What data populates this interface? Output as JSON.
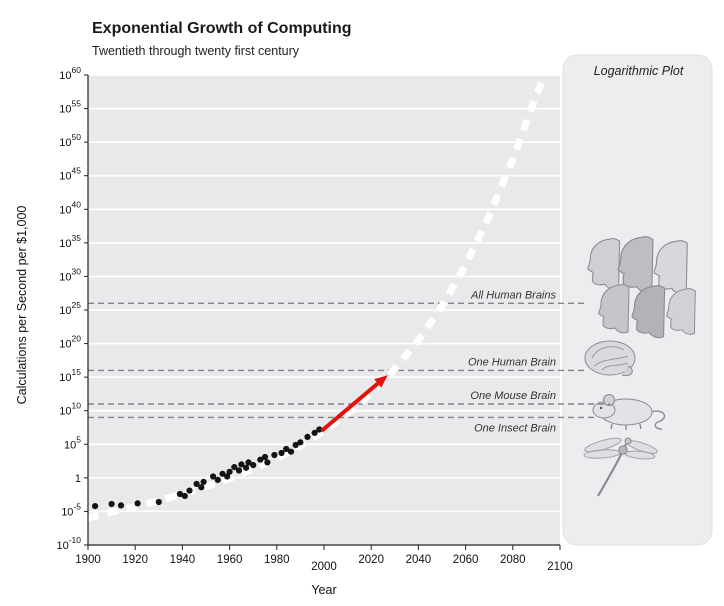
{
  "header": {
    "title": "Exponential Growth of Computing",
    "subtitle": "Twentieth through twenty first century"
  },
  "legend": {
    "label": "Logarithmic Plot"
  },
  "axes": {
    "x_label": "Year",
    "y_label": "Calculations per Second per $1,000"
  },
  "chart_data": {
    "type": "scatter",
    "title": "Exponential Growth of Computing",
    "subtitle": "Twentieth through twenty first century",
    "xlabel": "Year",
    "ylabel": "Calculations per Second per $1,000",
    "scale": "logarithmic-y",
    "x_range": [
      1900,
      2100
    ],
    "y_exponent_range": [
      -10,
      60
    ],
    "x_ticks": [
      1900,
      1920,
      1940,
      1960,
      1980,
      2000,
      2020,
      2040,
      2060,
      2080,
      2100
    ],
    "x_tick_dy": [
      0,
      0,
      0,
      0,
      0,
      7,
      0,
      0,
      0,
      0,
      7
    ],
    "y_tick_exponents": [
      60,
      55,
      50,
      45,
      40,
      35,
      30,
      25,
      20,
      15,
      10,
      5,
      0,
      -5,
      -10
    ],
    "grid": "horizontal white lines on light gray plot background",
    "legend_position": "top-right panel",
    "trend_line": {
      "name": "exponential growth trend",
      "style": "thick white dashed curve",
      "points": [
        [
          1900,
          -6.0
        ],
        [
          1910,
          -5.1
        ],
        [
          1920,
          -4.3
        ],
        [
          1930,
          -3.4
        ],
        [
          1940,
          -2.4
        ],
        [
          1950,
          -1.3
        ],
        [
          1960,
          -0.1
        ],
        [
          1970,
          1.3
        ],
        [
          1980,
          2.9
        ],
        [
          1990,
          4.8
        ],
        [
          2000,
          7.0
        ],
        [
          2010,
          9.6
        ],
        [
          2020,
          12.6
        ],
        [
          2030,
          16.2
        ],
        [
          2040,
          20.5
        ],
        [
          2050,
          25.6
        ],
        [
          2060,
          31.7
        ],
        [
          2070,
          39.0
        ],
        [
          2080,
          47.5
        ],
        [
          2090,
          57.0
        ],
        [
          2096,
          62.0
        ]
      ]
    },
    "scatter_points": [
      [
        1903,
        -4.2
      ],
      [
        1910,
        -3.9
      ],
      [
        1914,
        -4.1
      ],
      [
        1921,
        -3.8
      ],
      [
        1930,
        -3.6
      ],
      [
        1939,
        -2.4
      ],
      [
        1941,
        -2.7
      ],
      [
        1943,
        -1.9
      ],
      [
        1946,
        -0.9
      ],
      [
        1948,
        -1.4
      ],
      [
        1949,
        -0.6
      ],
      [
        1953,
        0.2
      ],
      [
        1955,
        -0.3
      ],
      [
        1957,
        0.6
      ],
      [
        1959,
        0.2
      ],
      [
        1960,
        0.9
      ],
      [
        1962,
        1.6
      ],
      [
        1964,
        1.1
      ],
      [
        1965,
        2.0
      ],
      [
        1967,
        1.5
      ],
      [
        1968,
        2.3
      ],
      [
        1970,
        1.9
      ],
      [
        1973,
        2.7
      ],
      [
        1975,
        3.1
      ],
      [
        1976,
        2.3
      ],
      [
        1979,
        3.4
      ],
      [
        1982,
        3.7
      ],
      [
        1984,
        4.3
      ],
      [
        1986,
        3.9
      ],
      [
        1988,
        4.9
      ],
      [
        1990,
        5.3
      ],
      [
        1993,
        6.1
      ],
      [
        1996,
        6.7
      ],
      [
        1998,
        7.2
      ]
    ],
    "annotations": [
      {
        "label": "All Human Brains",
        "exponent": 26,
        "extend": 27,
        "label_below": false
      },
      {
        "label": "One Human Brain",
        "exponent": 16,
        "extend": 27,
        "label_below": false
      },
      {
        "label": "One Mouse Brain",
        "exponent": 11,
        "extend": 50,
        "label_below": false
      },
      {
        "label": "One Insect Brain",
        "exponent": 9,
        "extend": 34,
        "label_below": true
      }
    ],
    "arrow": {
      "from": [
        1999,
        7
      ],
      "to": [
        2027,
        15.3
      ]
    },
    "colors": {
      "dot": "#141414",
      "trend": "#ffffff",
      "arrow": "#e3120b",
      "plot_bg": "#e9e9ec",
      "panel_bg": "#ededf0",
      "annotation_line": "#828288",
      "axis": "#222222"
    }
  },
  "side_panel": {
    "images": [
      {
        "name": "human-heads"
      },
      {
        "name": "human-brain"
      },
      {
        "name": "mouse"
      },
      {
        "name": "dragonfly"
      }
    ]
  }
}
